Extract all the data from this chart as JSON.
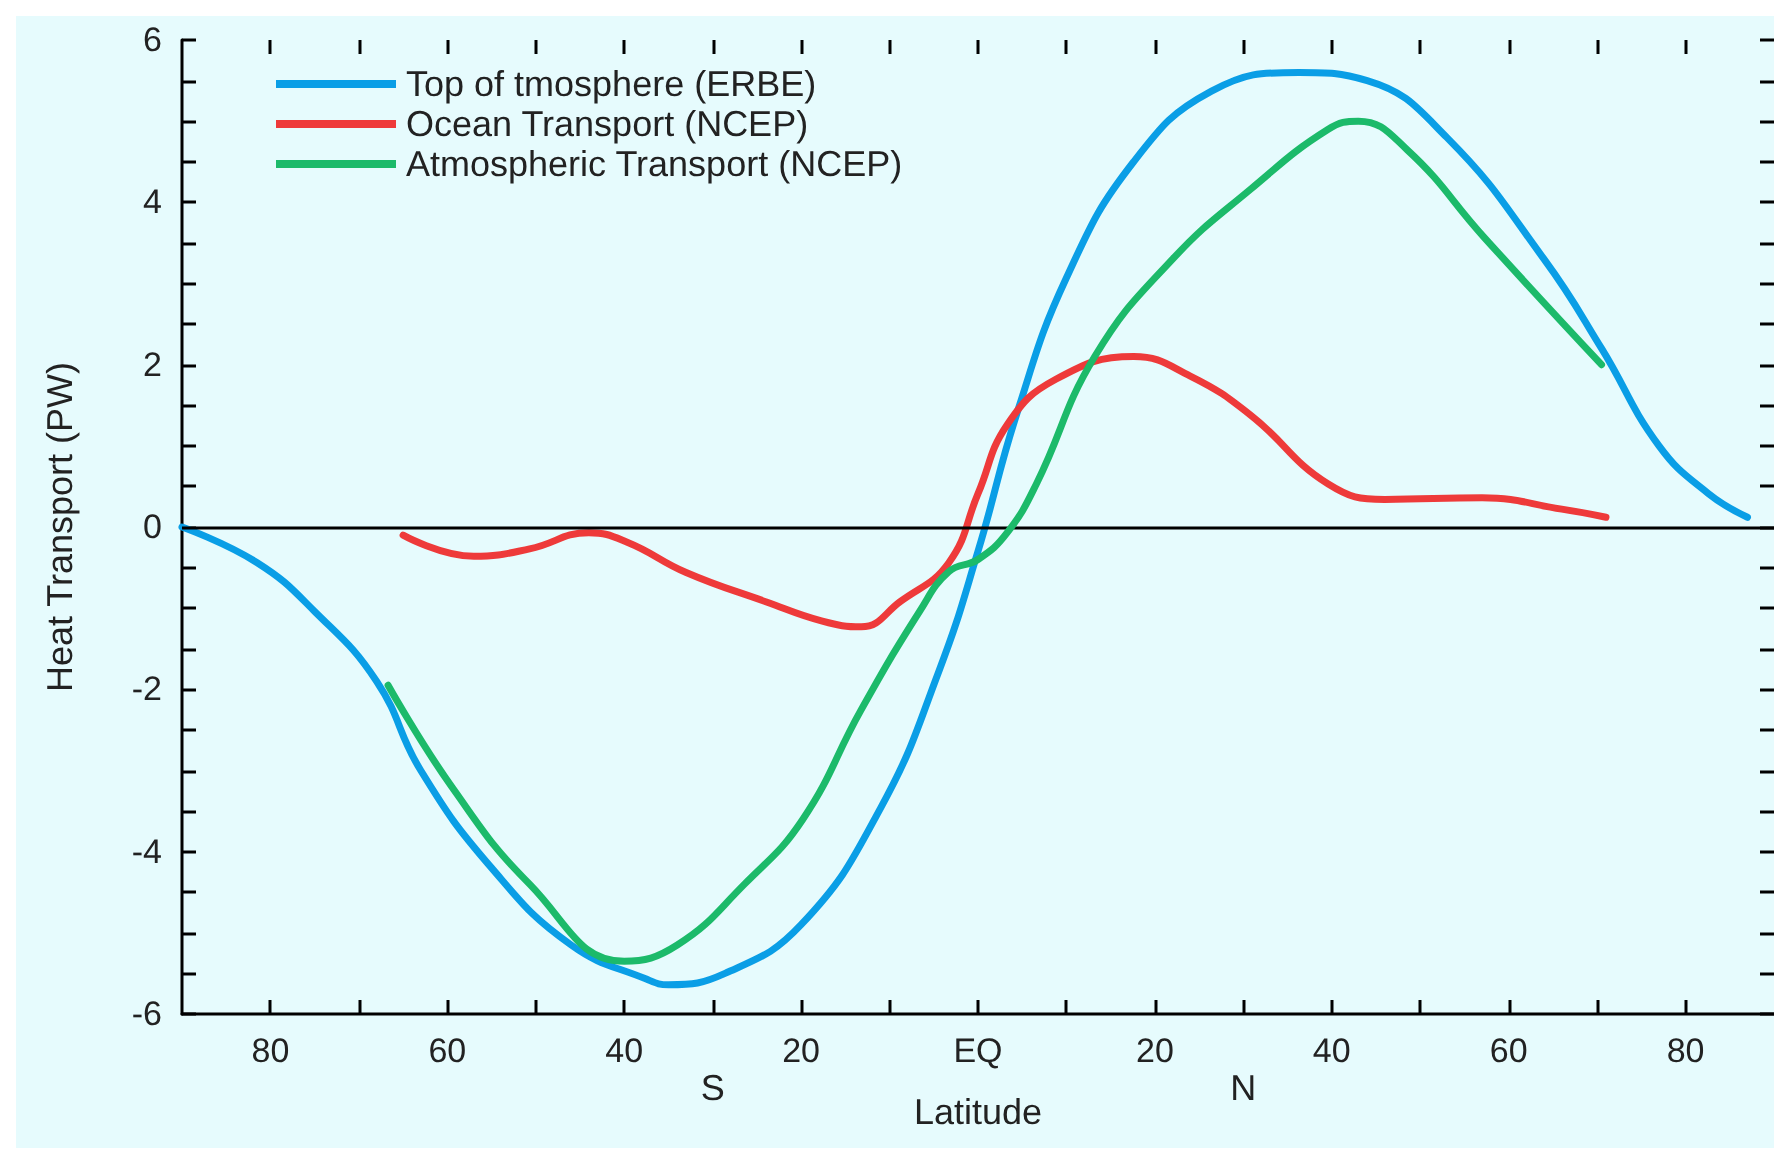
{
  "chart_data": {
    "type": "line",
    "xlabel": "Latitude",
    "ylabel": "Heat Transport (PW)",
    "annotations": [
      "S",
      "N"
    ],
    "xlim": [
      -90,
      90
    ],
    "ylim": [
      -6,
      6
    ],
    "xticks": [
      {
        "value": -80,
        "label": "80"
      },
      {
        "value": -70,
        "label": null
      },
      {
        "value": -60,
        "label": "60"
      },
      {
        "value": -50,
        "label": null
      },
      {
        "value": -40,
        "label": "40"
      },
      {
        "value": -30,
        "label": null
      },
      {
        "value": -20,
        "label": "20"
      },
      {
        "value": -10,
        "label": null
      },
      {
        "value": 0,
        "label": "EQ"
      },
      {
        "value": 10,
        "label": null
      },
      {
        "value": 20,
        "label": "20"
      },
      {
        "value": 30,
        "label": null
      },
      {
        "value": 40,
        "label": "40"
      },
      {
        "value": 50,
        "label": null
      },
      {
        "value": 60,
        "label": "60"
      },
      {
        "value": 70,
        "label": null
      },
      {
        "value": 80,
        "label": "80"
      }
    ],
    "yticks": [
      -6,
      {
        "value": -5.5,
        "label": null
      },
      {
        "value": -5,
        "label": null
      },
      {
        "value": -4.5,
        "label": null
      },
      -4,
      {
        "value": -3.5,
        "label": null
      },
      {
        "value": -3,
        "label": null
      },
      {
        "value": -2.5,
        "label": null
      },
      -2,
      {
        "value": -1.5,
        "label": null
      },
      {
        "value": -1,
        "label": null
      },
      {
        "value": -0.5,
        "label": null
      },
      0,
      {
        "value": 0.5,
        "label": null
      },
      {
        "value": 1,
        "label": null
      },
      {
        "value": 1.5,
        "label": null
      },
      2,
      {
        "value": 2.5,
        "label": null
      },
      {
        "value": 3,
        "label": null
      },
      {
        "value": 3.5,
        "label": null
      },
      4,
      {
        "value": 4.5,
        "label": null
      },
      {
        "value": 5,
        "label": null
      },
      {
        "value": 5.5,
        "label": null
      },
      6
    ],
    "ref_lines": [
      {
        "axis": "y",
        "value": 0,
        "color": "#000000"
      }
    ],
    "grid": false,
    "legend": "top left",
    "marker": "none",
    "line_style": "solid",
    "series": [
      {
        "name": "Top of tmosphere (ERBE)",
        "color": "#0a9ee6",
        "x": [
          -90,
          -81.5,
          -75,
          -68,
          -63,
          -55,
          -46,
          -37.5,
          -35,
          -28.6,
          -20,
          -11,
          -4.4,
          0,
          4.4,
          10,
          17.6,
          26.4,
          36.3,
          44,
          53,
          64,
          70.5,
          77,
          82.6,
          87
        ],
        "values": [
          0,
          -0.44,
          -1.04,
          -1.9,
          -3.0,
          -4.2,
          -5.15,
          -5.57,
          -5.64,
          -5.5,
          -4.9,
          -3.46,
          -1.77,
          -0.3,
          1.4,
          3.07,
          4.5,
          5.37,
          5.6,
          5.5,
          4.8,
          3.3,
          2.2,
          1.0,
          0.41,
          0.12
        ]
      },
      {
        "name": "Ocean Transport (NCEP)",
        "color": "#ee3a3a",
        "x": [
          -65,
          -57,
          -50.7,
          -44,
          -39.6,
          -33,
          -24,
          -17.6,
          -13.2,
          -8.8,
          -3.3,
          0,
          3.3,
          8.8,
          17.6,
          24,
          30.8,
          39.6,
          46,
          57,
          66,
          71
        ],
        "values": [
          -0.1,
          -0.36,
          -0.27,
          -0.07,
          -0.19,
          -0.56,
          -0.92,
          -1.16,
          -1.23,
          -0.92,
          -0.44,
          0.41,
          1.26,
          1.82,
          2.1,
          1.86,
          1.38,
          0.53,
          0.34,
          0.36,
          0.22,
          0.12
        ]
      },
      {
        "name": "Atmospheric Transport (NCEP)",
        "color": "#1cba6a",
        "x": [
          -66.7,
          -59.5,
          -50.7,
          -40,
          -34,
          -26.4,
          -19.8,
          -13.2,
          -6.6,
          -3.3,
          0,
          3.3,
          6.6,
          13.2,
          22,
          30.8,
          39.6,
          43,
          48.5,
          57.3,
          70.5
        ],
        "values": [
          -1.95,
          -3.2,
          -4.4,
          -5.35,
          -5.15,
          -4.4,
          -3.6,
          -2.25,
          -1.04,
          -0.55,
          -0.4,
          -0.07,
          0.53,
          2.1,
          3.3,
          4.16,
          4.9,
          5.0,
          4.65,
          3.56,
          2.0
        ]
      }
    ]
  }
}
